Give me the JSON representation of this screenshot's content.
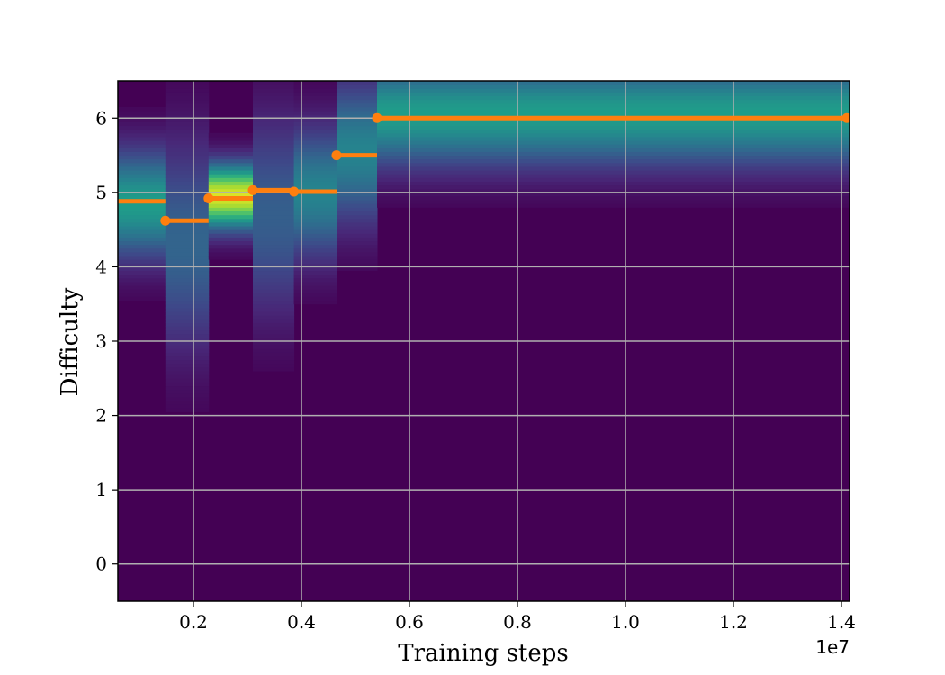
{
  "chart_data": {
    "type": "heatmap",
    "title": "",
    "xlabel": "Training steps",
    "ylabel": "Difficulty",
    "x_offset_label": "1e7",
    "x_tick_labels": [
      "0.2",
      "0.4",
      "0.6",
      "0.8",
      "1.0",
      "1.2",
      "1.4"
    ],
    "y_tick_labels": [
      "0",
      "1",
      "2",
      "3",
      "4",
      "5",
      "6"
    ],
    "xlim": [
      0.06,
      1.415
    ],
    "ylim": [
      -0.5,
      6.5
    ],
    "grid": true,
    "colormap": "viridis",
    "heatmap_columns": [
      {
        "x_start": 0.06,
        "x_end": 0.148,
        "center": 4.85,
        "spread": 0.5,
        "peak": 0.55
      },
      {
        "x_start": 0.148,
        "x_end": 0.228,
        "center": 4.3,
        "spread": 0.95,
        "peak": 0.32
      },
      {
        "x_start": 0.228,
        "x_end": 0.31,
        "center": 4.95,
        "spread": 0.3,
        "peak": 0.95
      },
      {
        "x_start": 0.31,
        "x_end": 0.386,
        "center": 4.7,
        "spread": 0.9,
        "peak": 0.3
      },
      {
        "x_start": 0.386,
        "x_end": 0.465,
        "center": 5.0,
        "spread": 0.6,
        "peak": 0.45
      },
      {
        "x_start": 0.465,
        "x_end": 0.54,
        "center": 5.55,
        "spread": 0.65,
        "peak": 0.45
      },
      {
        "x_start": 0.54,
        "x_end": 1.415,
        "center": 6.05,
        "spread": 0.48,
        "peak": 0.55
      }
    ],
    "series": [
      {
        "color": "#ff7f0e",
        "segments": [
          {
            "x_start": 0.06,
            "x_end": 0.148,
            "y": 4.88,
            "marker": false
          },
          {
            "x_start": 0.148,
            "x_end": 0.228,
            "y": 4.62,
            "marker": true
          },
          {
            "x_start": 0.228,
            "x_end": 0.31,
            "y": 4.92,
            "marker": true
          },
          {
            "x_start": 0.31,
            "x_end": 0.386,
            "y": 5.03,
            "marker": true
          },
          {
            "x_start": 0.386,
            "x_end": 0.465,
            "y": 5.01,
            "marker": true
          },
          {
            "x_start": 0.465,
            "x_end": 0.54,
            "y": 5.5,
            "marker": true
          },
          {
            "x_start": 0.54,
            "x_end": 1.415,
            "y": 6.0,
            "marker": true
          },
          {
            "x_start": 1.41,
            "x_end": 1.415,
            "y": 6.0,
            "marker": true
          }
        ]
      }
    ]
  }
}
